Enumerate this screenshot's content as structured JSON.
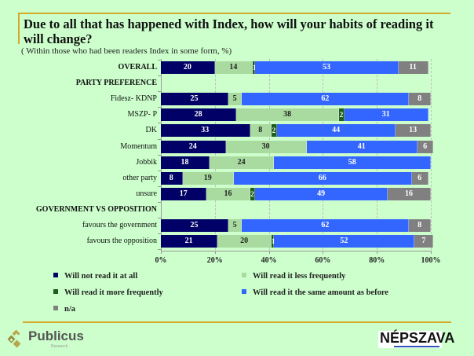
{
  "title": "Due to all that has happened with Index, how will your habits of reading it will change?",
  "subtitle": "( Within those who had been readers Index in some form, %)",
  "chart_data": {
    "type": "bar",
    "orientation": "horizontal",
    "stacked": true,
    "title": "Due to all that has happened with Index, how will your habits of reading it will change?",
    "subtitle": "( Within those who had been readers Index in some form, %)",
    "xlabel": "",
    "ylabel": "",
    "xlim": [
      0,
      100
    ],
    "x_ticks": [
      "0%",
      "20%",
      "40%",
      "60%",
      "80%",
      "100%"
    ],
    "grid": true,
    "legend_position": "bottom",
    "categories": [
      "OVERALL",
      "PARTY PREFERENCE",
      "Fidesz- KDNP",
      "MSZP- P",
      "DK",
      "Momentum",
      "Jobbik",
      "other party",
      "unsure",
      "GOVERNMENT VS OPPOSITION",
      "favours the government",
      "favours the opposition"
    ],
    "header_rows": [
      "OVERALL",
      "PARTY PREFERENCE",
      "GOVERNMENT VS OPPOSITION"
    ],
    "series": [
      {
        "name": "Will not read it at all",
        "color": "#000066",
        "values": [
          20,
          null,
          25,
          28,
          33,
          24,
          18,
          8,
          17,
          null,
          25,
          21
        ]
      },
      {
        "name": "Will read it less frequently",
        "color": "#a9dba0",
        "values": [
          14,
          null,
          5,
          38,
          8,
          30,
          24,
          19,
          16,
          null,
          5,
          20
        ]
      },
      {
        "name": "Will read it more frequently",
        "color": "#1e5e1e",
        "values": [
          1,
          null,
          0,
          2,
          2,
          0,
          0,
          0,
          2,
          null,
          0,
          1
        ]
      },
      {
        "name": "Will read it the same amount as before",
        "color": "#3366ff",
        "values": [
          53,
          null,
          62,
          31,
          44,
          41,
          58,
          66,
          49,
          null,
          62,
          52
        ]
      },
      {
        "name": "n/a",
        "color": "#808080",
        "values": [
          11,
          null,
          8,
          0,
          13,
          6,
          0,
          6,
          16,
          null,
          8,
          7
        ]
      }
    ]
  },
  "legend": [
    {
      "label": "Will not read it at all",
      "color": "#000066"
    },
    {
      "label": "Will read it less frequently",
      "color": "#a9dba0"
    },
    {
      "label": "Will read it more frequently",
      "color": "#1e5e1e"
    },
    {
      "label": "Will read it the same amount as before",
      "color": "#3366ff"
    },
    {
      "label": "n/a",
      "color": "#808080"
    }
  ],
  "footer": {
    "publicus": "Publicus",
    "publicus_sub": "Research",
    "nepszava": "NÉPSZAVA"
  }
}
